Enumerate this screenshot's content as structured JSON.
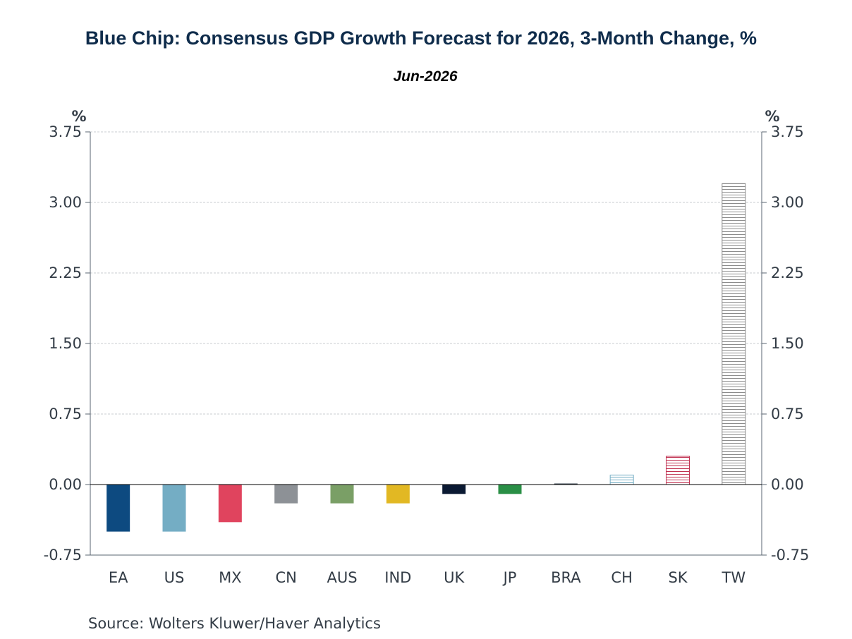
{
  "chart_data": {
    "type": "bar",
    "title": "Blue Chip: Consensus GDP Growth Forecast for 2026, 3-Month Change, %",
    "subtitle": "Jun-2026",
    "y_unit_left": "%",
    "y_unit_right": "%",
    "ylim": [
      -0.75,
      3.75
    ],
    "yticks": [
      "3.75",
      "3.00",
      "2.25",
      "1.50",
      "0.75",
      "0.00",
      "-0.75"
    ],
    "ytick_values": [
      3.75,
      3.0,
      2.25,
      1.5,
      0.75,
      0.0,
      -0.75
    ],
    "grid": true,
    "categories": [
      "EA",
      "US",
      "MX",
      "CN",
      "AUS",
      "IND",
      "UK",
      "JP",
      "BRA",
      "CH",
      "SK",
      "TW"
    ],
    "values": [
      -0.5,
      -0.5,
      -0.4,
      -0.2,
      -0.2,
      -0.2,
      -0.1,
      -0.1,
      0.0,
      0.1,
      0.3,
      3.2
    ],
    "colors": [
      "#0d4a80",
      "#74adc4",
      "#e0445e",
      "#8d9196",
      "#7a9f66",
      "#e2b823",
      "#0b1a33",
      "#2a8f46",
      "#3a4650",
      "#74adc4",
      "#c03050",
      "#8c8c8c"
    ],
    "fills": [
      "solid",
      "solid",
      "solid",
      "solid",
      "solid",
      "solid",
      "solid",
      "solid",
      "solid",
      "hatched",
      "hatched",
      "hatched"
    ],
    "source": "Source:  Wolters Kluwer/Haver Analytics"
  }
}
